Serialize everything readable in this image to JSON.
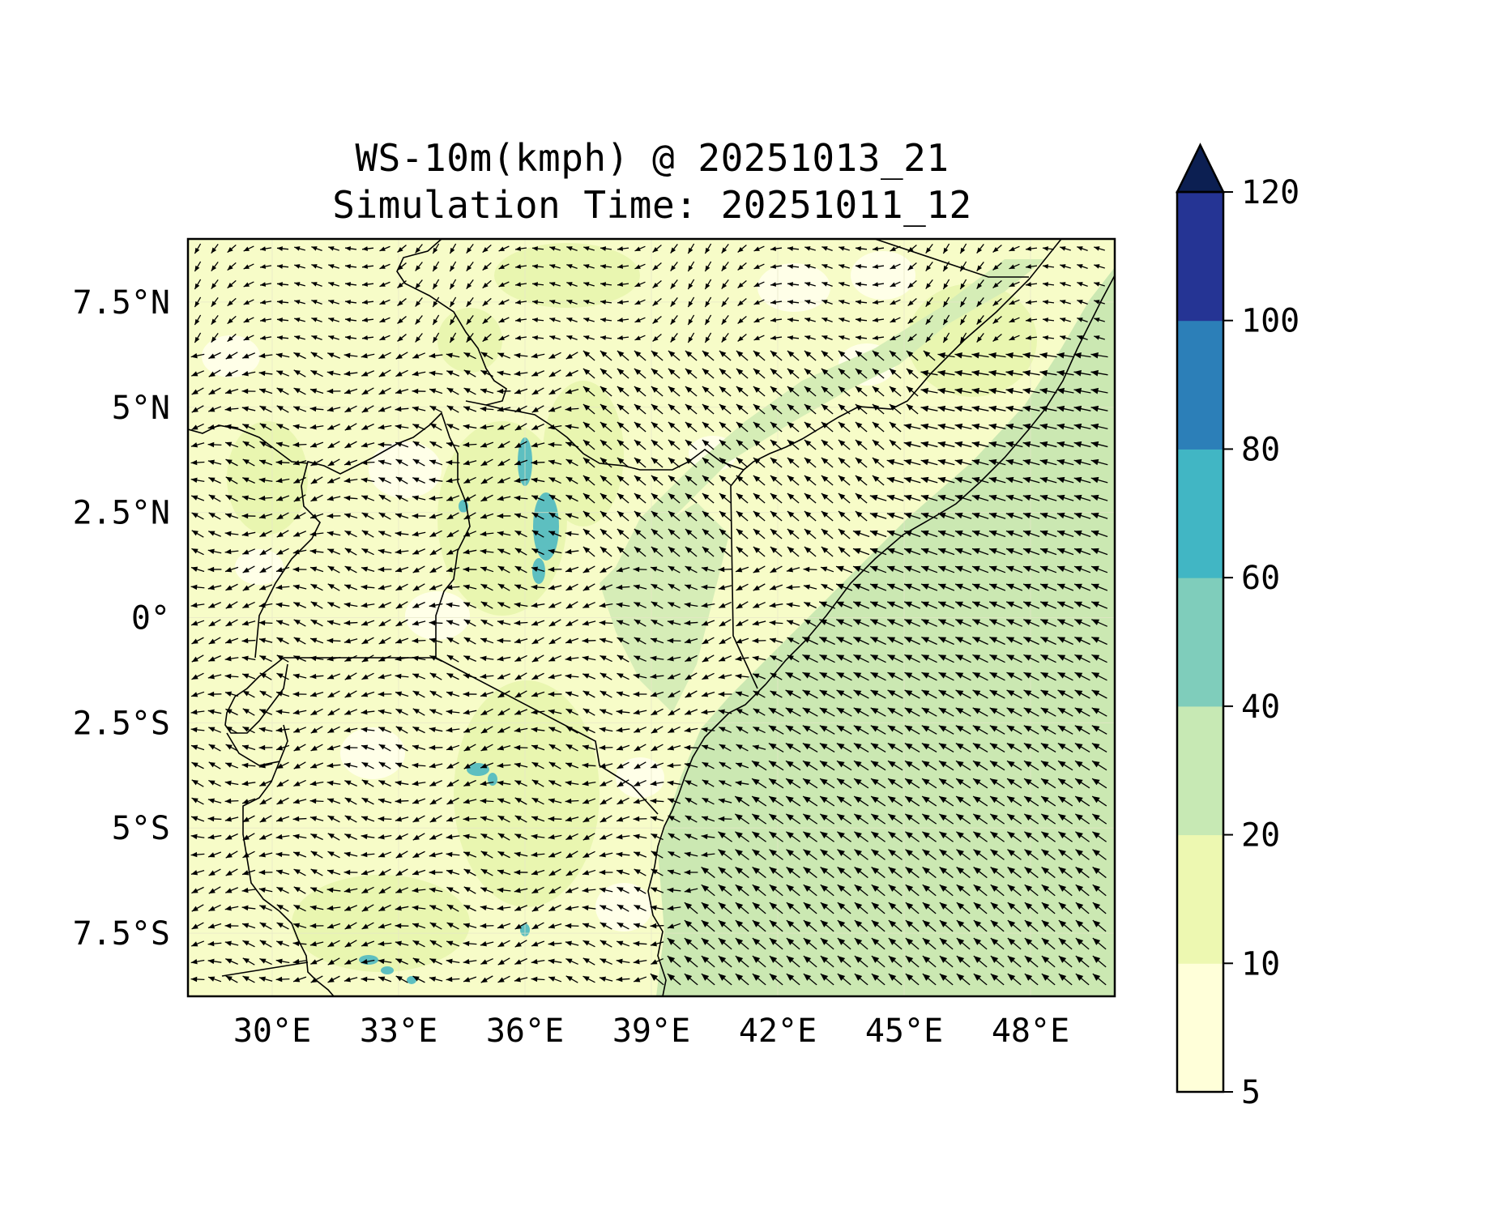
{
  "title_line_1": "WS-10m(kmph) @ 20251013_21",
  "title_line_2": "Simulation Time: 20251011_12",
  "map": {
    "lon_range": [
      28.0,
      50.0
    ],
    "lat_range": [
      -9.0,
      9.0
    ],
    "x_ticks": [
      "30°E",
      "33°E",
      "36°E",
      "39°E",
      "42°E",
      "45°E",
      "48°E"
    ],
    "x_tick_values": [
      30,
      33,
      36,
      39,
      42,
      45,
      48
    ],
    "y_ticks": [
      "7.5°N",
      "5°N",
      "2.5°N",
      "0°",
      "2.5°S",
      "5°S",
      "7.5°S"
    ],
    "y_tick_values": [
      7.5,
      5,
      2.5,
      0,
      -2.5,
      -5,
      -7.5
    ],
    "gridlines": true,
    "vector_field": "10 m wind vectors (arrows)"
  },
  "colorbar": {
    "levels": [
      "5",
      "10",
      "20",
      "40",
      "60",
      "80",
      "100",
      "120"
    ],
    "colors": [
      "#ffffd9",
      "#edf8b1",
      "#c7e9b4",
      "#7fcdbb",
      "#41b6c4",
      "#2c7fb8",
      "#253494"
    ],
    "extend_color": "#0c1f52",
    "extend": "max"
  },
  "colors": {
    "land_low": "#ffffd9",
    "land_mid": "#edf8b1",
    "ocean": "#cbe8b2",
    "high": "#41b6c4",
    "border": "#000000"
  }
}
